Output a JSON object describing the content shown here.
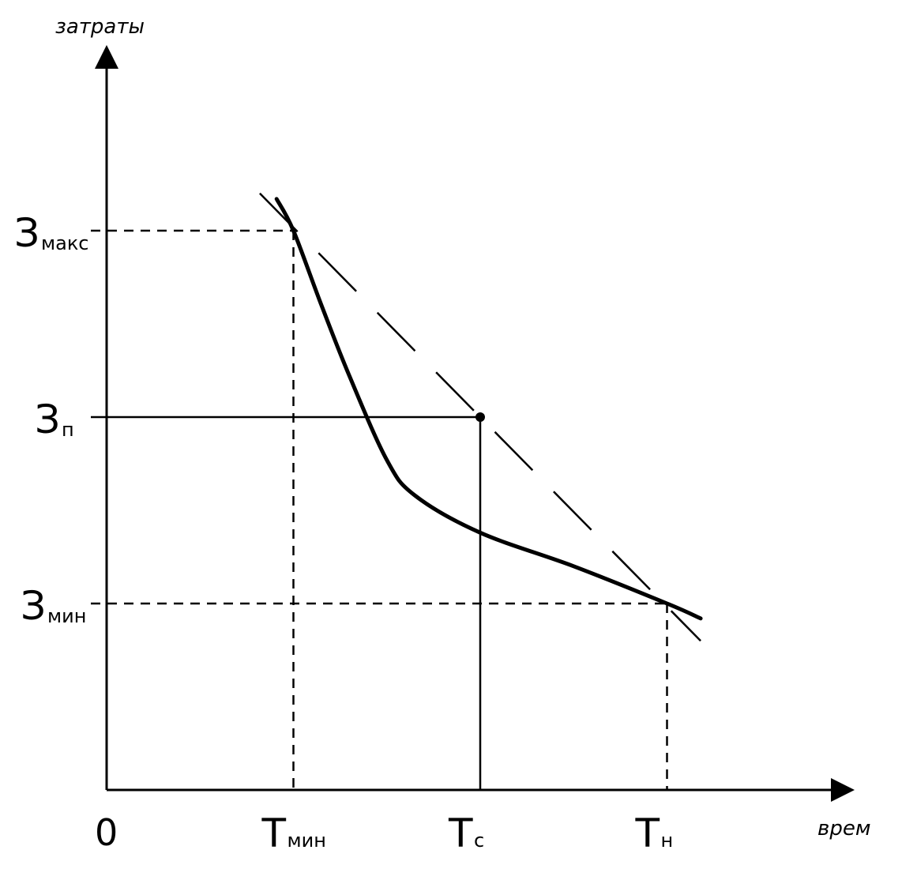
{
  "chart_data": {
    "type": "line",
    "ylabel": "затраты",
    "xlabel": "врем",
    "origin_label": "0",
    "x_ticks": [
      {
        "main": "Т",
        "sub": "мин",
        "value": 1
      },
      {
        "main": "Т",
        "sub": "с",
        "value": 2
      },
      {
        "main": "Т",
        "sub": "н",
        "value": 3
      }
    ],
    "y_ticks": [
      {
        "main": "З",
        "sub": "макс",
        "value": 3
      },
      {
        "main": "З",
        "sub": "п",
        "value": 2
      },
      {
        "main": "З",
        "sub": "мин",
        "value": 1
      }
    ],
    "xlim": [
      0,
      4
    ],
    "ylim": [
      0,
      4
    ],
    "grid": false,
    "series": [
      {
        "style": "solid-thick",
        "points": [
          [
            0.91,
            3.17
          ],
          [
            1,
            3
          ],
          [
            1.15,
            2.6
          ],
          [
            1.3,
            2.22
          ],
          [
            1.5,
            1.77
          ],
          [
            1.65,
            1.58
          ],
          [
            2,
            1.38
          ],
          [
            2.5,
            1.2
          ],
          [
            3,
            1
          ],
          [
            3.18,
            0.92
          ]
        ]
      },
      {
        "style": "dashed",
        "points": [
          [
            0.82,
            3.2
          ],
          [
            3.18,
            0.8
          ]
        ]
      }
    ],
    "point": {
      "x": 2,
      "y": 2
    },
    "guides": [
      {
        "style": "dashed",
        "from": [
          0,
          3
        ],
        "to": [
          1,
          3
        ]
      },
      {
        "style": "dashed",
        "from": [
          1,
          3
        ],
        "to": [
          1,
          0
        ]
      },
      {
        "style": "solid",
        "from": [
          0,
          2
        ],
        "to": [
          2,
          2
        ]
      },
      {
        "style": "solid",
        "from": [
          2,
          2
        ],
        "to": [
          2,
          0
        ]
      },
      {
        "style": "dashed",
        "from": [
          0,
          1
        ],
        "to": [
          3,
          1
        ]
      },
      {
        "style": "dashed",
        "from": [
          3,
          1
        ],
        "to": [
          3,
          0
        ]
      }
    ],
    "colors": {
      "ink": "#000000",
      "background": "#ffffff"
    }
  }
}
